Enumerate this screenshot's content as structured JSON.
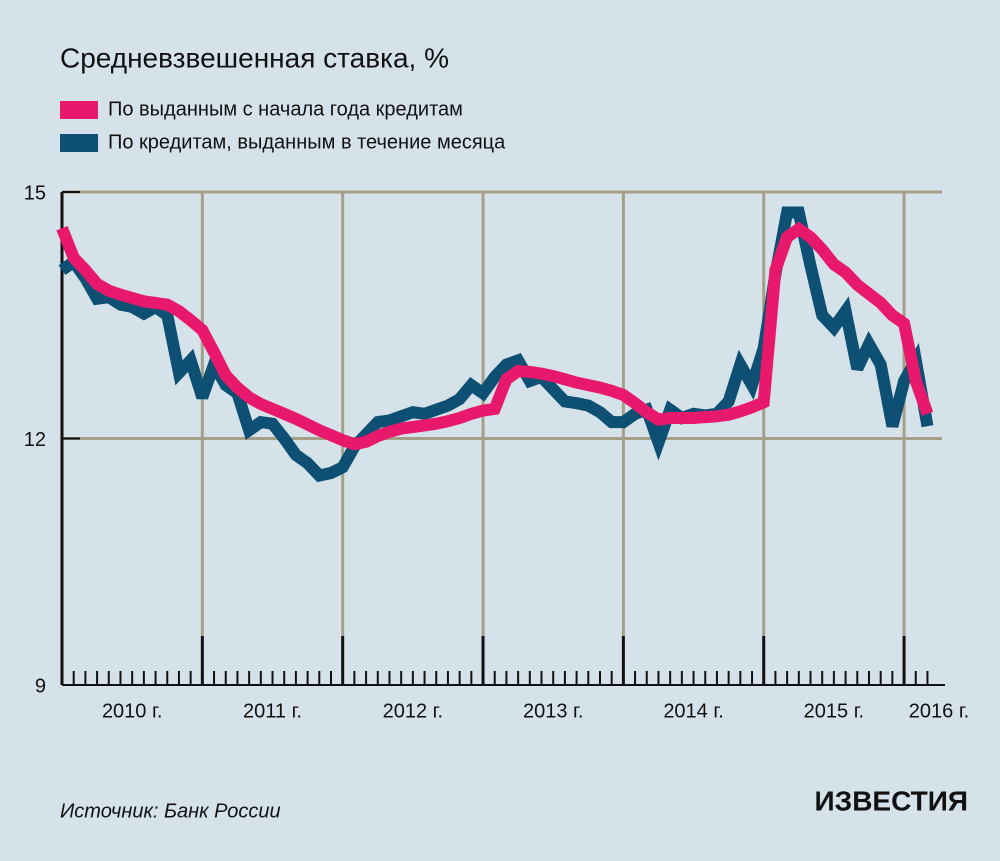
{
  "chart_data": {
    "type": "line",
    "title": "Средневзвешенная ставка, %",
    "source": "Источник: Банк России",
    "brand": "ИЗВЕСТИЯ",
    "categories": [
      null,
      null,
      null,
      null,
      null,
      null,
      null,
      null,
      null,
      null,
      null,
      null,
      null,
      null,
      null,
      null,
      null,
      null,
      null,
      null,
      null,
      null,
      null,
      null,
      null,
      null,
      null,
      null,
      null,
      null,
      null,
      null,
      null,
      null,
      null,
      null,
      null,
      null,
      null,
      null,
      null,
      null,
      null,
      null,
      null,
      null,
      null,
      null,
      null,
      null,
      null,
      null,
      null,
      null,
      null,
      null,
      null,
      null,
      null,
      null,
      null,
      null,
      null,
      null,
      null,
      null,
      null,
      null,
      null,
      null,
      null,
      null,
      null,
      null,
      null
    ],
    "series": [
      {
        "name": "По кредитам, выданным в течение месяца",
        "color": "#0e5073",
        "values": [
          14.05,
          14.15,
          13.95,
          13.7,
          13.72,
          13.63,
          13.6,
          13.52,
          13.6,
          13.5,
          12.8,
          12.95,
          12.5,
          12.9,
          12.65,
          12.55,
          12.1,
          12.2,
          12.18,
          12.0,
          11.8,
          11.7,
          11.55,
          11.58,
          11.65,
          11.9,
          12.05,
          12.2,
          12.22,
          12.27,
          12.32,
          12.3,
          12.35,
          12.4,
          12.48,
          12.65,
          12.55,
          12.75,
          12.9,
          12.95,
          12.7,
          12.75,
          12.6,
          12.45,
          12.43,
          12.4,
          12.32,
          12.2,
          12.2,
          12.3,
          12.35,
          11.95,
          12.35,
          12.25,
          12.3,
          12.28,
          12.3,
          12.45,
          12.9,
          12.65,
          13.1,
          14.0,
          14.75,
          14.75,
          14.1,
          13.5,
          13.35,
          13.55,
          12.85,
          13.15,
          12.9,
          12.15,
          12.7,
          12.95,
          12.15
        ]
      },
      {
        "name": "По выданным с начала года кредитам",
        "color": "#e8196c",
        "values": [
          14.56,
          14.2,
          14.05,
          13.88,
          13.8,
          13.75,
          13.71,
          13.67,
          13.65,
          13.63,
          13.55,
          13.44,
          13.32,
          13.05,
          12.77,
          12.62,
          12.5,
          12.42,
          12.36,
          12.3,
          12.24,
          12.17,
          12.1,
          12.04,
          11.98,
          11.93,
          11.96,
          12.03,
          12.08,
          12.12,
          12.14,
          12.16,
          12.18,
          12.21,
          12.25,
          12.3,
          12.34,
          12.36,
          12.72,
          12.82,
          12.81,
          12.79,
          12.76,
          12.72,
          12.68,
          12.65,
          12.62,
          12.58,
          12.53,
          12.43,
          12.32,
          12.23,
          12.25,
          12.25,
          12.25,
          12.26,
          12.27,
          12.29,
          12.33,
          12.38,
          12.44,
          14.05,
          14.45,
          14.55,
          14.45,
          14.3,
          14.12,
          14.02,
          13.87,
          13.76,
          13.65,
          13.5,
          13.4,
          12.7,
          12.3
        ]
      }
    ],
    "legend_order": [
      1,
      0
    ],
    "xlim": [
      0,
      75.5
    ],
    "xticks": [
      {
        "value": 0,
        "label": "2010 г."
      },
      {
        "value": 12,
        "label": "2011 г."
      },
      {
        "value": 24,
        "label": "2012 г."
      },
      {
        "value": 36,
        "label": "2013 г."
      },
      {
        "value": 48,
        "label": "2014 г."
      },
      {
        "value": 60,
        "label": "2015 г."
      },
      {
        "value": 72,
        "label": "2016 г."
      }
    ],
    "ylim": [
      9,
      15
    ],
    "yticks": [
      9,
      12,
      15
    ],
    "grid": true
  }
}
